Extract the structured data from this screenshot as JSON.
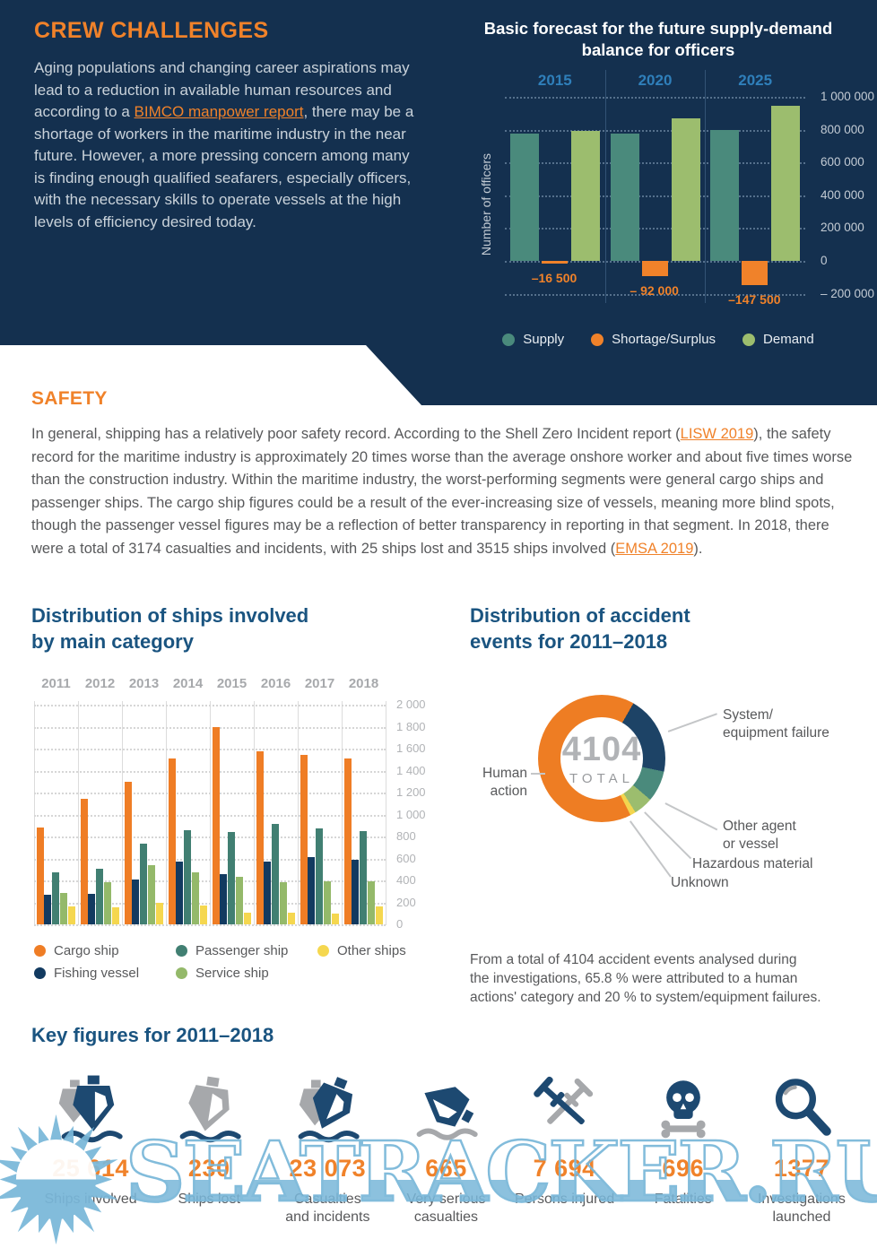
{
  "crew": {
    "title": "CREW CHALLENGES",
    "p1": "Aging populations and changing career aspirations may lead to a reduction in available human resources and according to a ",
    "link": "BIMCO manpower report",
    "p2": ", there may be a shortage of workers in the maritime industry in the near future. However, a more pressing concern among many is finding enough qualified seafarers, especially officers, with the necessary skills to operate vessels at the high levels of efficiency desired today."
  },
  "forecast": {
    "title": "Basic forecast for the future supply-demand balance for officers",
    "ylabel": "Number of officers"
  },
  "safety": {
    "title": "SAFETY",
    "p1": "In general, shipping has a relatively poor safety record. According to the Shell Zero Incident report (",
    "link1": "LISW 2019",
    "p2": "), the safety record for the maritime industry is approximately 20 times worse than the average onshore worker and about five times worse than the construction industry. Within the maritime industry, the worst-performing segments were general cargo ships and passenger ships. The cargo ship figures could be a result of the ever-increasing size of vessels, meaning more blind spots, though the passenger vessel figures may be a reflection of better transparency in reporting in that segment. In 2018, there were a total of 3174 casualties and incidents, with 25 ships lost and 3515 ships involved (",
    "link2": "EMSA 2019",
    "p3": ")."
  },
  "ships": {
    "title": "Distribution of ships involved\nby main category"
  },
  "donut": {
    "title": "Distribution of accident\nevents for 2011–2018",
    "total": "4104",
    "total_label": "TOTAL",
    "caption": "From a total of 4104 accident events analysed during\nthe investigations, 65.8 % were attributed to a human\nactions' category and 20 % to system/equipment failures."
  },
  "key_figures": {
    "title": "Key figures for 2011–2018",
    "items": [
      {
        "icon": "ships-involved-icon",
        "value": "25 614",
        "label": "Ships involved"
      },
      {
        "icon": "ship-lost-icon",
        "value": "230",
        "label": "Ships lost"
      },
      {
        "icon": "casualty-ship-icon",
        "value": "23 073",
        "label": "Casualties\nand incidents"
      },
      {
        "icon": "capsized-ship-icon",
        "value": "665",
        "label": "Very serious\ncasualties"
      },
      {
        "icon": "crutches-icon",
        "value": "7 694",
        "label": "Persons injured"
      },
      {
        "icon": "skull-crossbones-icon",
        "value": "696",
        "label": "Fatalities"
      },
      {
        "icon": "magnifier-icon",
        "value": "1377",
        "label": "Investigations\nlaunched"
      }
    ]
  },
  "watermark": {
    "text": "SEATRACKER.RU"
  },
  "chart_data": [
    {
      "type": "bar",
      "title": "Basic forecast for the future supply-demand balance for officers",
      "categories": [
        "2015",
        "2020",
        "2025"
      ],
      "series": [
        {
          "name": "Supply",
          "color": "#4a8a7c",
          "values": [
            774000,
            776000,
            796000
          ]
        },
        {
          "name": "Shortage/Surplus",
          "color": "#f0822a",
          "values": [
            -16500,
            -92000,
            -147500
          ],
          "labels": [
            "–16 500",
            "– 92 000",
            "–147 500"
          ]
        },
        {
          "name": "Demand",
          "color": "#9cbd6e",
          "values": [
            790500,
            868000,
            943500
          ]
        }
      ],
      "ylabel": "Number of officers",
      "ylim": [
        -200000,
        1000000
      ],
      "yticks": [
        {
          "value": 1000000,
          "label": "1 000 000"
        },
        {
          "value": 800000,
          "label": "800 000"
        },
        {
          "value": 600000,
          "label": "600 000"
        },
        {
          "value": 400000,
          "label": "400 000"
        },
        {
          "value": 200000,
          "label": "200 000"
        },
        {
          "value": 0,
          "label": "0"
        },
        {
          "value": -200000,
          "label": "– 200 000"
        }
      ],
      "grid": true,
      "legend_position": "bottom"
    },
    {
      "type": "bar",
      "title": "Distribution of ships involved by main category",
      "categories": [
        "2011",
        "2012",
        "2013",
        "2014",
        "2015",
        "2016",
        "2017",
        "2018"
      ],
      "series": [
        {
          "name": "Cargo ship",
          "color": "#ef7d25",
          "values": [
            880,
            1140,
            1295,
            1510,
            1795,
            1575,
            1540,
            1510
          ]
        },
        {
          "name": "Fishing vessel",
          "color": "#123a60",
          "values": [
            270,
            275,
            405,
            570,
            460,
            575,
            610,
            585
          ]
        },
        {
          "name": "Passenger ship",
          "color": "#417f72",
          "values": [
            470,
            505,
            735,
            860,
            845,
            915,
            870,
            850
          ]
        },
        {
          "name": "Service ship",
          "color": "#94b96a",
          "values": [
            285,
            380,
            535,
            475,
            430,
            385,
            390,
            395
          ]
        },
        {
          "name": "Other ships",
          "color": "#f5d74f",
          "values": [
            165,
            155,
            200,
            170,
            105,
            110,
            100,
            160
          ]
        }
      ],
      "ylim": [
        0,
        2000
      ],
      "yticks": [
        {
          "value": 2000,
          "label": "2 000"
        },
        {
          "value": 1800,
          "label": "1 800"
        },
        {
          "value": 1600,
          "label": "1 600"
        },
        {
          "value": 1400,
          "label": "1 400"
        },
        {
          "value": 1200,
          "label": "1 200"
        },
        {
          "value": 1000,
          "label": "1 000"
        },
        {
          "value": 800,
          "label": "800"
        },
        {
          "value": 600,
          "label": "600"
        },
        {
          "value": 400,
          "label": "400"
        },
        {
          "value": 200,
          "label": "200"
        },
        {
          "value": 0,
          "label": "0"
        }
      ],
      "grid": true,
      "legend_position": "bottom",
      "legend_display_order": [
        0,
        2,
        4,
        1,
        3
      ]
    },
    {
      "type": "pie",
      "title": "Distribution of accident events for 2011–2018",
      "total": 4104,
      "start_angle_deg_from_top": 153,
      "slices": [
        {
          "label": "Human\naction",
          "pct": 65.8,
          "color": "#ee7d23"
        },
        {
          "label": "System/\nequipment failure",
          "pct": 20.0,
          "color": "#1d4366"
        },
        {
          "label": "Other agent\nor vessel",
          "pct": 7.9,
          "color": "#4a8a7c"
        },
        {
          "label": "Hazardous material",
          "pct": 4.9,
          "color": "#9cbd6e"
        },
        {
          "label": "Unknown",
          "pct": 1.4,
          "color": "#f3d54e"
        }
      ]
    }
  ]
}
